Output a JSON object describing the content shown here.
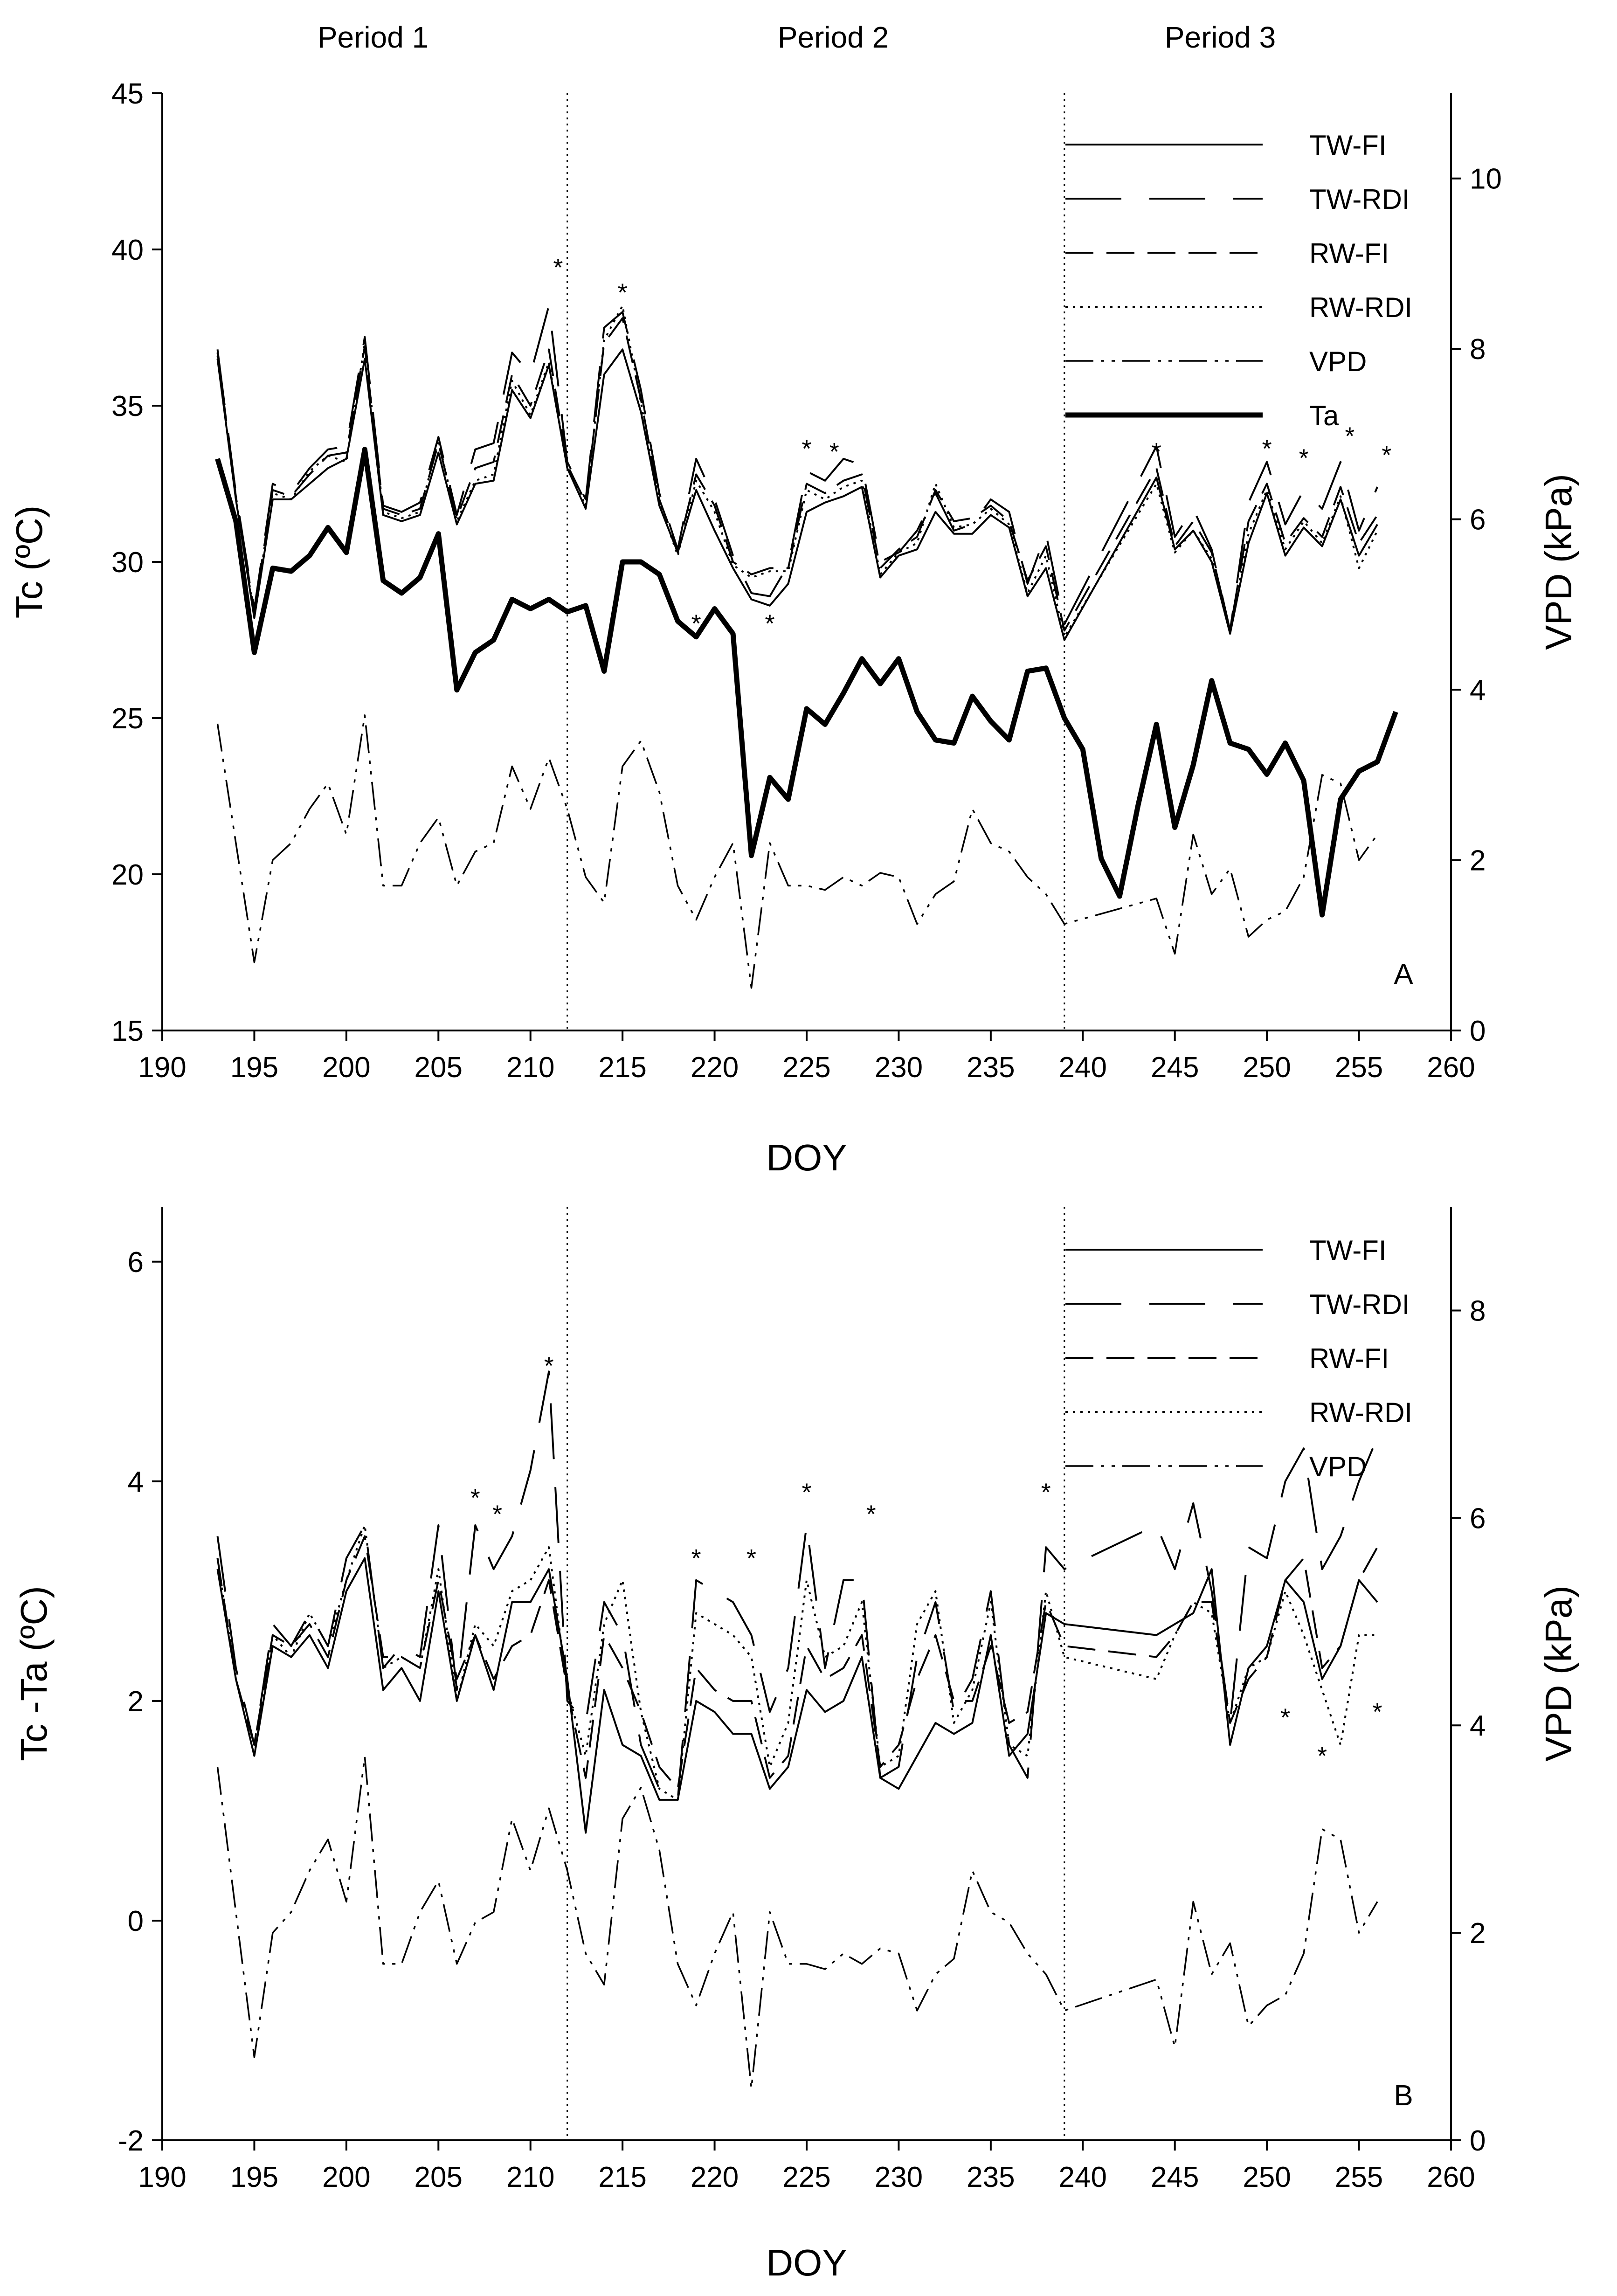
{
  "period_labels": [
    "Period 1",
    "Period 2",
    "Period 3"
  ],
  "chart_data": [
    {
      "type": "line",
      "panel_label": "A",
      "xlabel": "DOY",
      "ylabel": "Tc (ºC)",
      "y2label": "VPD (kPa)",
      "xlim": [
        190,
        260
      ],
      "ylim": [
        15,
        45
      ],
      "y2lim": [
        0,
        11
      ],
      "xticks": [
        190,
        195,
        200,
        205,
        210,
        215,
        220,
        225,
        230,
        235,
        240,
        245,
        250,
        255,
        260
      ],
      "yticks": [
        15,
        20,
        25,
        30,
        35,
        40,
        45
      ],
      "y2ticks": [
        0,
        2,
        4,
        6,
        8,
        10
      ],
      "period_dividers": [
        212,
        239
      ],
      "legend": [
        "TW-FI",
        "TW-RDI",
        "RW-FI",
        "RW-RDI",
        "VPD",
        "Ta"
      ],
      "x": [
        193,
        194,
        195,
        196,
        197,
        198,
        199,
        200,
        201,
        202,
        203,
        204,
        205,
        206,
        207,
        208,
        209,
        210,
        211,
        212,
        213,
        214,
        215,
        216,
        217,
        218,
        219,
        220,
        221,
        222,
        223,
        224,
        225,
        226,
        227,
        228,
        229,
        230,
        231,
        232,
        233,
        234,
        235,
        236,
        237,
        238,
        239,
        244,
        245,
        246,
        247,
        248,
        249,
        250,
        251,
        252,
        253,
        254,
        255,
        256
      ],
      "series": [
        {
          "name": "TW-FI",
          "axis": "left",
          "values": [
            36.5,
            32.0,
            28.2,
            32.0,
            32.0,
            32.5,
            33.0,
            33.3,
            36.5,
            31.5,
            31.3,
            31.5,
            33.5,
            31.2,
            32.5,
            32.6,
            35.5,
            34.6,
            36.3,
            33.0,
            31.7,
            36.0,
            36.8,
            34.8,
            31.8,
            30.3,
            32.3,
            31.0,
            29.8,
            28.8,
            28.6,
            29.3,
            31.6,
            31.9,
            32.1,
            32.4,
            29.5,
            30.2,
            30.4,
            31.6,
            30.9,
            30.9,
            31.5,
            31.1,
            28.9,
            29.8,
            27.5,
            32.7,
            30.4,
            31.0,
            30.0,
            27.7,
            30.6,
            32.2,
            30.2,
            31.1,
            30.5,
            32.0,
            30.2,
            31.2
          ]
        },
        {
          "name": "TW-RDI",
          "axis": "left",
          "values": [
            36.8,
            32.2,
            28.5,
            32.5,
            32.2,
            33.0,
            33.6,
            33.7,
            37.2,
            31.8,
            31.6,
            31.9,
            34.0,
            31.5,
            33.6,
            33.8,
            36.7,
            36.0,
            38.2,
            33.2,
            32.0,
            37.5,
            38.0,
            35.5,
            32.2,
            30.4,
            33.3,
            32.0,
            30.2,
            29.0,
            28.9,
            29.9,
            32.9,
            32.6,
            33.3,
            33.1,
            30.0,
            30.3,
            31.0,
            32.2,
            31.0,
            31.2,
            32.0,
            31.6,
            29.3,
            30.9,
            28.0,
            33.7,
            30.8,
            31.7,
            30.4,
            27.8,
            31.9,
            33.2,
            31.2,
            32.3,
            31.7,
            33.2,
            31.0,
            32.4
          ]
        },
        {
          "name": "RW-FI",
          "axis": "left",
          "values": [
            36.7,
            32.1,
            28.4,
            32.3,
            32.1,
            32.8,
            33.4,
            33.5,
            36.9,
            31.7,
            31.5,
            31.7,
            33.8,
            31.4,
            33.0,
            33.2,
            36.0,
            35.0,
            36.8,
            33.1,
            31.9,
            37.0,
            37.8,
            35.2,
            32.0,
            30.4,
            32.8,
            31.8,
            30.0,
            29.6,
            29.8,
            29.8,
            32.5,
            32.2,
            32.6,
            32.8,
            29.8,
            30.4,
            30.8,
            32.3,
            31.3,
            31.4,
            31.8,
            31.3,
            29.4,
            30.5,
            27.8,
            33.0,
            30.5,
            31.3,
            30.3,
            27.8,
            31.3,
            32.5,
            30.6,
            31.4,
            30.8,
            32.4,
            30.6,
            31.5
          ]
        },
        {
          "name": "RW-RDI",
          "axis": "left",
          "values": [
            36.6,
            32.0,
            28.3,
            32.2,
            32.0,
            32.9,
            33.4,
            33.2,
            37.0,
            31.6,
            31.4,
            31.6,
            33.9,
            31.3,
            32.6,
            32.8,
            35.8,
            34.7,
            36.4,
            33.0,
            31.8,
            37.1,
            38.2,
            35.1,
            31.9,
            30.2,
            32.6,
            31.6,
            29.9,
            29.5,
            29.7,
            29.7,
            32.3,
            32.0,
            32.4,
            32.6,
            29.6,
            30.3,
            30.6,
            32.5,
            31.1,
            31.2,
            31.7,
            31.2,
            29.0,
            30.2,
            27.6,
            32.5,
            30.3,
            31.0,
            30.1,
            27.7,
            30.9,
            32.3,
            30.4,
            31.3,
            30.6,
            32.1,
            29.8,
            31.0
          ]
        },
        {
          "name": "VPD",
          "axis": "right",
          "values": [
            3.6,
            2.2,
            0.8,
            2.0,
            2.2,
            2.6,
            2.9,
            2.3,
            3.7,
            1.7,
            1.7,
            2.2,
            2.5,
            1.7,
            2.1,
            2.2,
            3.1,
            2.6,
            3.2,
            2.6,
            1.8,
            1.5,
            3.1,
            3.4,
            2.8,
            1.7,
            1.3,
            1.8,
            2.2,
            0.5,
            2.2,
            1.7,
            1.7,
            1.65,
            1.8,
            1.7,
            1.85,
            1.8,
            1.25,
            1.6,
            1.75,
            2.6,
            2.2,
            2.1,
            1.8,
            1.6,
            1.25,
            1.55,
            0.9,
            2.3,
            1.6,
            1.9,
            1.1,
            1.3,
            1.4,
            1.8,
            3.0,
            2.9,
            2.0,
            2.3
          ]
        }
      ],
      "ta": {
        "name": "Ta",
        "x": [
          193,
          194,
          195,
          196,
          197,
          198,
          199,
          200,
          201,
          202,
          203,
          204,
          205,
          206,
          207,
          208,
          209,
          210,
          211,
          212,
          213,
          214,
          215,
          216,
          217,
          218,
          219,
          220,
          221,
          222,
          223,
          224,
          225,
          226,
          227,
          228,
          229,
          230,
          231,
          232,
          233,
          234,
          235,
          236,
          237,
          238,
          239,
          240,
          241,
          242,
          243,
          244,
          245,
          246,
          247,
          248,
          249,
          250,
          251,
          252,
          253,
          254,
          255,
          256,
          257
        ],
        "values": [
          33.3,
          31.3,
          27.1,
          29.8,
          29.7,
          30.2,
          31.1,
          30.3,
          33.6,
          29.4,
          29.0,
          29.5,
          30.9,
          25.9,
          27.1,
          27.5,
          28.8,
          28.5,
          28.8,
          28.4,
          28.6,
          26.5,
          30.0,
          30.0,
          29.6,
          28.1,
          27.6,
          28.5,
          27.7,
          20.6,
          23.1,
          22.4,
          25.3,
          24.8,
          25.8,
          26.9,
          26.1,
          26.9,
          25.2,
          24.3,
          24.2,
          25.7,
          24.9,
          24.3,
          26.5,
          26.6,
          25.0,
          24.0,
          20.5,
          19.3,
          22.2,
          24.8,
          21.5,
          23.5,
          26.2,
          24.2,
          24.0,
          23.2,
          24.2,
          23.0,
          18.7,
          22.4,
          23.3,
          23.6,
          25.2
        ]
      },
      "significance_markers": {
        "x": [
          211.5,
          215,
          219,
          223,
          225,
          226.5,
          244,
          250,
          252,
          254.5,
          256.5
        ],
        "y": [
          39.6,
          38.8,
          28.2,
          28.2,
          33.8,
          33.7,
          33.7,
          33.8,
          33.5,
          34.2,
          33.6
        ],
        "label": "*"
      }
    },
    {
      "type": "line",
      "panel_label": "B",
      "xlabel": "DOY",
      "ylabel": "Tc -Ta (ºC)",
      "y2label": "VPD (kPa)",
      "xlim": [
        190,
        260
      ],
      "ylim": [
        -2,
        6.5
      ],
      "y2lim": [
        0,
        9
      ],
      "xticks": [
        190,
        195,
        200,
        205,
        210,
        215,
        220,
        225,
        230,
        235,
        240,
        245,
        250,
        255,
        260
      ],
      "yticks": [
        -2,
        0,
        2,
        4,
        6
      ],
      "y2ticks": [
        0,
        2,
        4,
        6,
        8
      ],
      "period_dividers": [
        212,
        239
      ],
      "legend": [
        "TW-FI",
        "TW-RDI",
        "RW-FI",
        "RW-RDI",
        "VPD"
      ],
      "x": [
        193,
        194,
        195,
        196,
        197,
        198,
        199,
        200,
        201,
        202,
        203,
        204,
        205,
        206,
        207,
        208,
        209,
        210,
        211,
        212,
        213,
        214,
        215,
        216,
        217,
        218,
        219,
        220,
        221,
        222,
        223,
        224,
        225,
        226,
        227,
        228,
        229,
        230,
        231,
        232,
        233,
        234,
        235,
        236,
        237,
        238,
        239,
        244,
        245,
        246,
        247,
        248,
        249,
        250,
        251,
        252,
        253,
        254,
        255,
        256
      ],
      "series": [
        {
          "name": "TW-FI",
          "axis": "left",
          "values": [
            3.2,
            2.2,
            1.5,
            2.5,
            2.4,
            2.6,
            2.3,
            3.0,
            3.3,
            2.1,
            2.3,
            2.0,
            3.0,
            2.0,
            2.6,
            2.1,
            2.9,
            2.9,
            3.2,
            2.2,
            0.8,
            2.1,
            1.6,
            1.5,
            1.1,
            1.1,
            2.0,
            1.9,
            1.7,
            1.7,
            1.2,
            1.4,
            2.1,
            1.9,
            2.0,
            2.4,
            1.3,
            1.2,
            1.5,
            1.8,
            1.7,
            1.8,
            2.6,
            1.5,
            1.7,
            2.8,
            2.7,
            2.6,
            2.7,
            2.8,
            3.2,
            1.6,
            2.3,
            2.5,
            3.1,
            2.9,
            2.2,
            2.5,
            3.1,
            2.9
          ]
        },
        {
          "name": "TW-RDI",
          "axis": "left",
          "values": [
            3.5,
            2.3,
            1.6,
            2.7,
            2.5,
            2.8,
            2.5,
            3.3,
            3.6,
            2.3,
            2.5,
            2.4,
            3.6,
            2.1,
            3.6,
            3.2,
            3.5,
            4.1,
            5.0,
            2.0,
            1.8,
            2.9,
            2.6,
            1.6,
            1.2,
            1.1,
            3.1,
            3.0,
            2.9,
            2.6,
            1.9,
            2.3,
            3.6,
            2.3,
            3.1,
            3.1,
            1.3,
            1.4,
            2.4,
            2.9,
            1.9,
            2.2,
            3.0,
            1.6,
            1.3,
            3.4,
            3.2,
            3.6,
            3.2,
            3.8,
            3.0,
            1.8,
            3.4,
            3.3,
            4.0,
            4.3,
            3.2,
            3.5,
            4.0,
            4.4
          ]
        },
        {
          "name": "RW-FI",
          "axis": "left",
          "values": [
            3.3,
            2.2,
            1.6,
            2.6,
            2.5,
            2.7,
            2.4,
            3.1,
            3.5,
            2.4,
            2.4,
            2.3,
            3.1,
            2.2,
            2.6,
            2.2,
            2.5,
            2.6,
            3.1,
            2.1,
            1.3,
            2.6,
            2.3,
            1.9,
            1.4,
            1.2,
            2.3,
            2.1,
            2.0,
            2.0,
            1.3,
            1.5,
            2.5,
            2.2,
            2.3,
            2.6,
            1.4,
            1.6,
            2.2,
            2.6,
            2.0,
            2.0,
            2.5,
            1.8,
            1.9,
            2.9,
            2.5,
            2.4,
            2.6,
            2.9,
            2.9,
            1.8,
            2.2,
            2.4,
            3.1,
            3.3,
            2.3,
            2.5,
            3.1,
            3.4
          ]
        },
        {
          "name": "RW-RDI",
          "axis": "left",
          "values": [
            3.3,
            2.2,
            1.5,
            2.6,
            2.4,
            2.8,
            2.5,
            3.1,
            3.6,
            2.3,
            2.4,
            2.3,
            3.2,
            2.0,
            2.7,
            2.5,
            3.0,
            3.1,
            3.4,
            2.1,
            1.5,
            2.7,
            3.1,
            1.9,
            1.2,
            1.1,
            2.8,
            2.7,
            2.6,
            2.4,
            1.4,
            1.8,
            3.1,
            2.4,
            2.5,
            2.9,
            1.4,
            1.5,
            2.7,
            3.0,
            1.8,
            2.1,
            2.9,
            1.6,
            1.5,
            3.0,
            2.4,
            2.2,
            2.6,
            2.9,
            2.8,
            1.8,
            2.3,
            2.4,
            3.0,
            2.6,
            2.1,
            1.6,
            2.6,
            2.6
          ]
        },
        {
          "name": "VPD",
          "axis": "right",
          "values": [
            3.6,
            2.2,
            0.8,
            2.0,
            2.2,
            2.6,
            2.9,
            2.3,
            3.7,
            1.7,
            1.7,
            2.2,
            2.5,
            1.7,
            2.1,
            2.2,
            3.1,
            2.6,
            3.2,
            2.6,
            1.8,
            1.5,
            3.1,
            3.4,
            2.8,
            1.7,
            1.3,
            1.8,
            2.2,
            0.5,
            2.2,
            1.7,
            1.7,
            1.65,
            1.8,
            1.7,
            1.85,
            1.8,
            1.25,
            1.6,
            1.75,
            2.6,
            2.2,
            2.1,
            1.8,
            1.6,
            1.25,
            1.55,
            0.9,
            2.3,
            1.6,
            1.9,
            1.1,
            1.3,
            1.4,
            1.8,
            3.0,
            2.9,
            2.0,
            2.3
          ]
        }
      ],
      "significance_markers": {
        "x": [
          211,
          207,
          208.2,
          219,
          222,
          225,
          228.5,
          238,
          251,
          253,
          256
        ],
        "y": [
          5.1,
          3.9,
          3.75,
          3.35,
          3.35,
          3.95,
          3.75,
          3.95,
          1.9,
          1.55,
          1.95
        ],
        "label": "*"
      }
    }
  ]
}
